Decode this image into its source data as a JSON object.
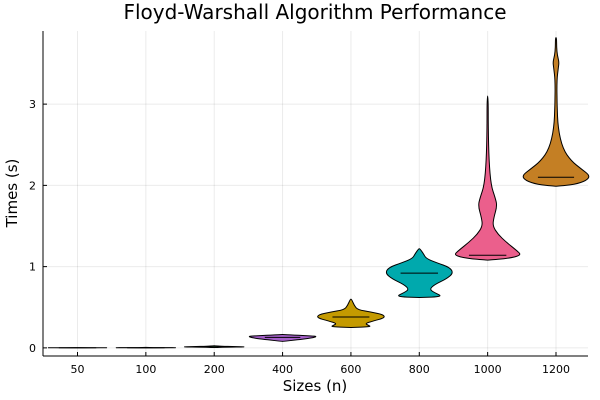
{
  "chart_data": {
    "type": "violin",
    "title": "Floyd-Warshall Algorithm Performance",
    "xlabel": "Sizes (n)",
    "ylabel": "Times (s)",
    "categories": [
      "50",
      "100",
      "200",
      "400",
      "600",
      "800",
      "1000",
      "1200"
    ],
    "ylim": [
      -0.1,
      3.9
    ],
    "yticks": [
      0,
      1,
      2,
      3
    ],
    "grid": true,
    "legend": "none",
    "series": [
      {
        "category": "50",
        "color": "#3f6fe0",
        "median": 0.001,
        "profile": [
          [
            0.0,
            0.0
          ],
          [
            0.0005,
            0.33
          ],
          [
            0.001,
            1.0
          ],
          [
            0.0015,
            0.5
          ],
          [
            0.002,
            0.15
          ],
          [
            0.003,
            0.0
          ]
        ]
      },
      {
        "category": "100",
        "color": "#e0762c",
        "median": 0.002,
        "profile": [
          [
            0.0,
            0.0
          ],
          [
            0.001,
            0.4
          ],
          [
            0.002,
            1.0
          ],
          [
            0.003,
            0.55
          ],
          [
            0.004,
            0.2
          ],
          [
            0.006,
            0.0
          ]
        ]
      },
      {
        "category": "200",
        "color": "#3aa14b",
        "median": 0.012,
        "profile": [
          [
            0.004,
            0.0
          ],
          [
            0.008,
            0.3
          ],
          [
            0.012,
            1.0
          ],
          [
            0.016,
            0.6
          ],
          [
            0.02,
            0.2
          ],
          [
            0.026,
            0.0
          ]
        ]
      },
      {
        "category": "400",
        "color": "#a55fc9",
        "median": 0.13,
        "profile": [
          [
            0.08,
            0.0
          ],
          [
            0.1,
            0.45
          ],
          [
            0.115,
            0.75
          ],
          [
            0.13,
            0.95
          ],
          [
            0.145,
            1.0
          ],
          [
            0.155,
            0.45
          ],
          [
            0.165,
            0.0
          ]
        ]
      },
      {
        "category": "600",
        "color": "#c49a00",
        "median": 0.38,
        "profile": [
          [
            0.25,
            0.0
          ],
          [
            0.26,
            0.6
          ],
          [
            0.28,
            0.5
          ],
          [
            0.3,
            0.42
          ],
          [
            0.33,
            0.65
          ],
          [
            0.37,
            1.0
          ],
          [
            0.41,
            0.95
          ],
          [
            0.44,
            0.6
          ],
          [
            0.47,
            0.2
          ],
          [
            0.52,
            0.1
          ],
          [
            0.6,
            0.0
          ]
        ]
      },
      {
        "category": "800",
        "color": "#00a9ad",
        "median": 0.92,
        "profile": [
          [
            0.62,
            0.0
          ],
          [
            0.63,
            0.7
          ],
          [
            0.68,
            0.45
          ],
          [
            0.72,
            0.3
          ],
          [
            0.78,
            0.45
          ],
          [
            0.85,
            0.8
          ],
          [
            0.92,
            1.0
          ],
          [
            0.99,
            0.9
          ],
          [
            1.05,
            0.5
          ],
          [
            1.1,
            0.2
          ],
          [
            1.16,
            0.12
          ],
          [
            1.22,
            0.0
          ]
        ]
      },
      {
        "category": "1000",
        "color": "#eb5f8c",
        "median": 1.14,
        "profile": [
          [
            1.08,
            0.0
          ],
          [
            1.1,
            0.6
          ],
          [
            1.14,
            1.0
          ],
          [
            1.2,
            0.85
          ],
          [
            1.3,
            0.55
          ],
          [
            1.4,
            0.3
          ],
          [
            1.5,
            0.15
          ],
          [
            1.6,
            0.18
          ],
          [
            1.75,
            0.28
          ],
          [
            1.85,
            0.22
          ],
          [
            2.0,
            0.1
          ],
          [
            2.3,
            0.04
          ],
          [
            2.7,
            0.015
          ],
          [
            3.1,
            0.0
          ]
        ]
      },
      {
        "category": "1200",
        "color": "#c47f24",
        "median": 2.1,
        "profile": [
          [
            1.99,
            0.0
          ],
          [
            2.01,
            0.55
          ],
          [
            2.06,
            0.9
          ],
          [
            2.12,
            1.0
          ],
          [
            2.2,
            0.75
          ],
          [
            2.3,
            0.45
          ],
          [
            2.45,
            0.2
          ],
          [
            2.7,
            0.06
          ],
          [
            3.0,
            0.03
          ],
          [
            3.3,
            0.025
          ],
          [
            3.45,
            0.07
          ],
          [
            3.52,
            0.09
          ],
          [
            3.6,
            0.04
          ],
          [
            3.7,
            0.015
          ],
          [
            3.82,
            0.0
          ]
        ]
      }
    ]
  }
}
